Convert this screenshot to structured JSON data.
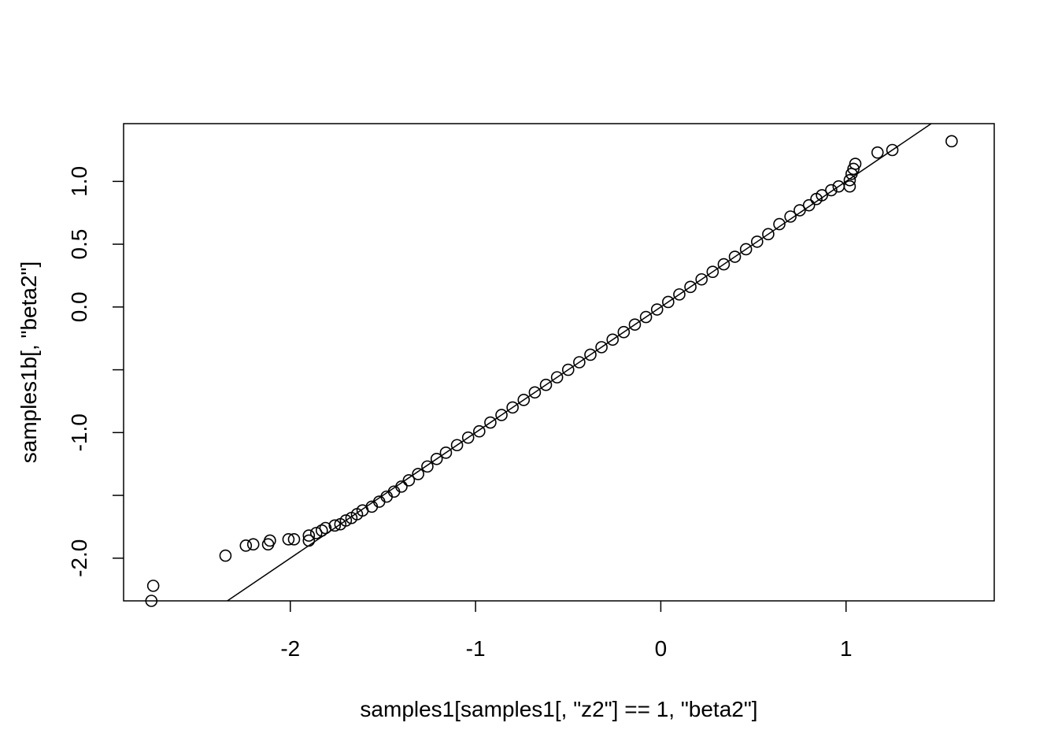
{
  "chart_data": {
    "type": "scatter",
    "subtype": "qq-plot",
    "title": "",
    "xlabel": "samples1[samples1[, \"z2\"] == 1, \"beta2\"]",
    "ylabel": "samples1b[, \"beta2\"]",
    "xlim": [
      -2.9,
      1.8
    ],
    "ylim": [
      -2.34,
      1.46
    ],
    "x_ticks": [
      -2,
      -1,
      0,
      1
    ],
    "x_tick_labels": [
      "-2",
      "-1",
      "0",
      "1"
    ],
    "y_ticks": [
      -2.0,
      -1.5,
      -1.0,
      -0.5,
      0.0,
      0.5,
      1.0
    ],
    "y_tick_labels": [
      "-2.0",
      "",
      "-1.0",
      "",
      "0.0",
      "0.5",
      "1.0"
    ],
    "reference_line": {
      "intercept": 0.0,
      "slope": 1.0
    },
    "marker": "open-circle",
    "colors": {
      "points": "#000000",
      "line": "#000000",
      "axis": "#000000",
      "background": "#ffffff"
    },
    "points": [
      [
        -2.74,
        -2.22
      ],
      [
        -2.75,
        -2.34
      ],
      [
        -2.35,
        -1.98
      ],
      [
        -2.24,
        -1.9
      ],
      [
        -2.2,
        -1.89
      ],
      [
        -2.12,
        -1.89
      ],
      [
        -2.11,
        -1.86
      ],
      [
        -2.01,
        -1.85
      ],
      [
        -1.98,
        -1.85
      ],
      [
        -1.9,
        -1.86
      ],
      [
        -1.9,
        -1.82
      ],
      [
        -1.86,
        -1.8
      ],
      [
        -1.83,
        -1.78
      ],
      [
        -1.81,
        -1.76
      ],
      [
        -1.76,
        -1.74
      ],
      [
        -1.73,
        -1.73
      ],
      [
        -1.7,
        -1.7
      ],
      [
        -1.67,
        -1.68
      ],
      [
        -1.64,
        -1.65
      ],
      [
        -1.61,
        -1.62
      ],
      [
        -1.56,
        -1.59
      ],
      [
        -1.52,
        -1.55
      ],
      [
        -1.48,
        -1.51
      ],
      [
        -1.44,
        -1.47
      ],
      [
        -1.4,
        -1.43
      ],
      [
        -1.36,
        -1.38
      ],
      [
        -1.31,
        -1.33
      ],
      [
        -1.26,
        -1.27
      ],
      [
        -1.21,
        -1.21
      ],
      [
        -1.16,
        -1.16
      ],
      [
        -1.1,
        -1.1
      ],
      [
        -1.04,
        -1.04
      ],
      [
        -0.98,
        -0.99
      ],
      [
        -0.92,
        -0.92
      ],
      [
        -0.86,
        -0.86
      ],
      [
        -0.8,
        -0.8
      ],
      [
        -0.74,
        -0.74
      ],
      [
        -0.68,
        -0.68
      ],
      [
        -0.62,
        -0.62
      ],
      [
        -0.56,
        -0.56
      ],
      [
        -0.5,
        -0.5
      ],
      [
        -0.44,
        -0.44
      ],
      [
        -0.38,
        -0.38
      ],
      [
        -0.32,
        -0.32
      ],
      [
        -0.26,
        -0.26
      ],
      [
        -0.2,
        -0.2
      ],
      [
        -0.14,
        -0.14
      ],
      [
        -0.08,
        -0.08
      ],
      [
        -0.02,
        -0.02
      ],
      [
        0.04,
        0.04
      ],
      [
        0.1,
        0.1
      ],
      [
        0.16,
        0.16
      ],
      [
        0.22,
        0.22
      ],
      [
        0.28,
        0.28
      ],
      [
        0.34,
        0.34
      ],
      [
        0.4,
        0.4
      ],
      [
        0.46,
        0.46
      ],
      [
        0.52,
        0.52
      ],
      [
        0.58,
        0.58
      ],
      [
        0.64,
        0.66
      ],
      [
        0.7,
        0.72
      ],
      [
        0.75,
        0.77
      ],
      [
        0.8,
        0.81
      ],
      [
        0.84,
        0.86
      ],
      [
        0.87,
        0.89
      ],
      [
        0.92,
        0.93
      ],
      [
        0.96,
        0.96
      ],
      [
        1.02,
        0.96
      ],
      [
        1.02,
        1.01
      ],
      [
        1.03,
        1.06
      ],
      [
        1.04,
        1.1
      ],
      [
        1.05,
        1.14
      ],
      [
        1.17,
        1.23
      ],
      [
        1.25,
        1.25
      ],
      [
        1.57,
        1.32
      ]
    ]
  }
}
